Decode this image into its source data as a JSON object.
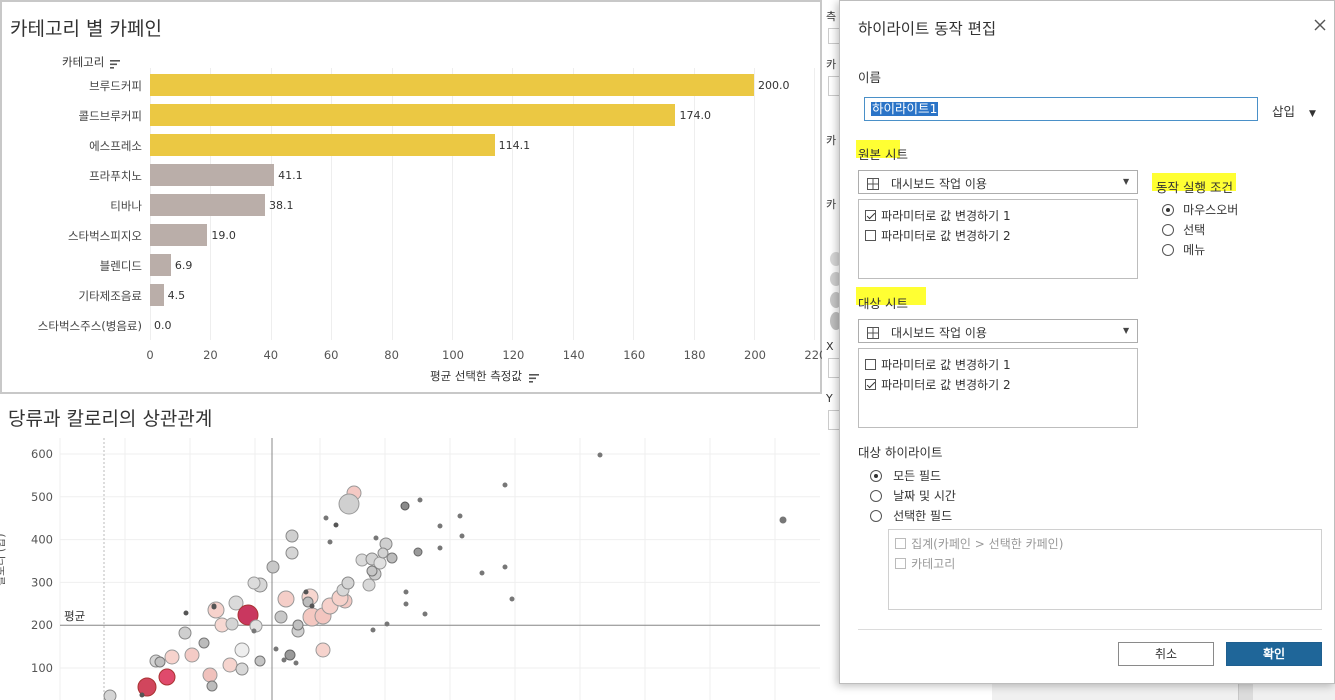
{
  "dashboard": {
    "top_sheet": {
      "title": "카테고리 별 카페인",
      "category_header": "카테고리",
      "x_axis_label": "평균 선택한 측정값",
      "chart_data": {
        "type": "bar",
        "orientation": "horizontal",
        "categories": [
          "브루드커피",
          "콜드브루커피",
          "에스프레소",
          "프라푸치노",
          "티바나",
          "스타벅스피지오",
          "블렌디드",
          "기타제조음료",
          "스타벅스주스(병음료)"
        ],
        "values": [
          200.0,
          174.0,
          114.1,
          41.1,
          38.1,
          19.0,
          6.9,
          4.5,
          0.0
        ],
        "value_labels": [
          "200.0",
          "174.0",
          "114.1",
          "41.1",
          "38.1",
          "19.0",
          "6.9",
          "4.5",
          "0.0"
        ],
        "xlim": [
          0,
          220
        ],
        "x_ticks": [
          "0",
          "20",
          "40",
          "60",
          "80",
          "100",
          "120",
          "140",
          "160",
          "180",
          "200",
          "220"
        ],
        "colors": {
          "highlighted": "#ebc843",
          "other": "#baaea9"
        },
        "highlighted_count": 3
      }
    },
    "bottom_sheet": {
      "title": "당류과 칼로리의 상관관계",
      "y_axis_label": "칼로리 (합)",
      "ref_line_label": "평균",
      "chart_data": {
        "type": "scatter",
        "ylim": [
          0,
          650
        ],
        "y_ticks": [
          "600",
          "500",
          "400",
          "300",
          "200",
          "100"
        ],
        "reference_line": {
          "y": 200,
          "label": "평균"
        },
        "vertical_reference_x": 0.33
      }
    },
    "side_strip_fragments": [
      "측",
      "X",
      "Y",
      "카",
      "카"
    ]
  },
  "dialog": {
    "title": "하이라이트 동작 편집",
    "close_icon": "close-icon",
    "name_label": "이름",
    "name_value": "하이라이트1",
    "insert_label": "삽입",
    "source_label": "원본 시트",
    "source_combo": "대시보드 작업 이용",
    "source_items": [
      {
        "label": "파라미터로 값 변경하기 1",
        "checked": true
      },
      {
        "label": "파라미터로 값 변경하기 2",
        "checked": false
      }
    ],
    "run_label": "동작 실행 조건",
    "run_options": [
      {
        "label": "마우스오버",
        "selected": true
      },
      {
        "label": "선택",
        "selected": false
      },
      {
        "label": "메뉴",
        "selected": false
      }
    ],
    "target_label": "대상 시트",
    "target_combo": "대시보드 작업 이용",
    "target_items": [
      {
        "label": "파라미터로 값 변경하기 1",
        "checked": false
      },
      {
        "label": "파라미터로 값 변경하기 2",
        "checked": true
      }
    ],
    "target_highlight_label": "대상 하이라이트",
    "highlight_options": [
      {
        "label": "모든 필드",
        "selected": true
      },
      {
        "label": "날짜 및 시간",
        "selected": false
      },
      {
        "label": "선택한 필드",
        "selected": false
      }
    ],
    "field_items": [
      {
        "label": "집계(카페인 > 선택한 카페인)",
        "checked": false
      },
      {
        "label": "카테고리",
        "checked": false
      }
    ],
    "cancel_label": "취소",
    "ok_label": "확인",
    "highlight_color": "#ffff33",
    "ok_color": "#1f6699"
  }
}
